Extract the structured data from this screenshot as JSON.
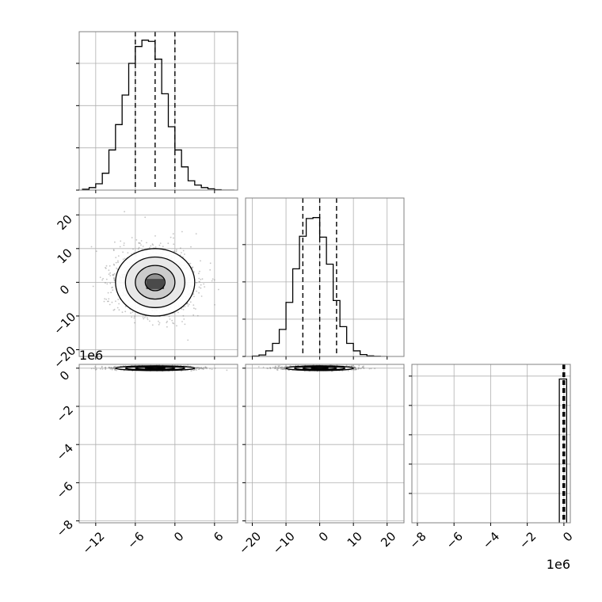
{
  "chart_data": {
    "type": "corner",
    "colors": {
      "line": "#000000",
      "grid": "#b0b0b0",
      "frame": "#808080",
      "scatter": "#7f7f7f"
    },
    "grid": true,
    "quantile_line_style": "dashed",
    "panels": [
      {
        "id": "hist-0",
        "type": "histogram",
        "row": 0,
        "col": 0,
        "xlim": [
          -14.5,
          9.5
        ],
        "bin_edges": [
          -14,
          -13,
          -12,
          -11,
          -10,
          -9,
          -8,
          -7,
          -6,
          -5,
          -4,
          -3,
          -2,
          -1,
          0,
          1,
          2,
          3,
          4,
          5,
          6,
          7,
          8,
          9
        ],
        "counts": [
          2,
          6,
          15,
          40,
          95,
          155,
          225,
          300,
          340,
          355,
          352,
          310,
          228,
          150,
          95,
          55,
          22,
          12,
          6,
          3,
          1,
          0,
          0
        ],
        "quantiles": [
          -6,
          -3,
          0
        ],
        "x_ticks": [
          -12,
          -6,
          0,
          6
        ],
        "x_tick_labels": [],
        "y_ticks": [
          0,
          100,
          200,
          300
        ],
        "y_tick_labels": [],
        "ylim": [
          0,
          375
        ]
      },
      {
        "id": "hist-1",
        "type": "histogram",
        "row": 1,
        "col": 1,
        "xlim": [
          -22,
          25
        ],
        "bin_edges": [
          -20,
          -18,
          -16,
          -14,
          -12,
          -10,
          -8,
          -6,
          -4,
          -2,
          0,
          2,
          4,
          6,
          8,
          10,
          12,
          14,
          16,
          18,
          20
        ],
        "counts": [
          2,
          8,
          30,
          70,
          145,
          290,
          470,
          645,
          740,
          745,
          640,
          495,
          300,
          160,
          70,
          30,
          10,
          3,
          1,
          0
        ],
        "quantiles": [
          -5,
          0,
          5
        ],
        "x_ticks": [
          -20,
          -10,
          0,
          10,
          20
        ],
        "x_tick_labels": [],
        "y_ticks": [
          0,
          200,
          400,
          600
        ],
        "y_tick_labels": [],
        "ylim": [
          0,
          850
        ]
      },
      {
        "id": "hist-2",
        "type": "histogram",
        "row": 2,
        "col": 2,
        "xlim": [
          -8.3,
          0.35
        ],
        "bin_edges": [
          -0.25,
          0.15
        ],
        "counts": [
          4900
        ],
        "quantiles": [
          -0.05,
          0.0,
          0.04
        ],
        "x_ticks": [
          -8,
          -6,
          -4,
          -2,
          0
        ],
        "x_tick_labels": [
          "−8",
          "−6",
          "−4",
          "−2",
          "0"
        ],
        "x_offset_label": "1e6",
        "y_ticks": [
          1000,
          2000,
          3000,
          4000,
          5000
        ],
        "y_tick_labels": [],
        "ylim": [
          0,
          5400
        ]
      },
      {
        "id": "scatter-1-0",
        "type": "density2d",
        "row": 1,
        "col": 0,
        "xlim": [
          -14.5,
          9.5
        ],
        "ylim": [
          -22,
          25
        ],
        "center": [
          -3,
          0
        ],
        "sigma": [
          3,
          5
        ],
        "contour_levels_sigma": [
          0.5,
          1.0,
          1.5,
          2.0
        ],
        "x_ticks": [
          -12,
          -6,
          0,
          6
        ],
        "x_tick_labels": [],
        "y_ticks": [
          -20,
          -10,
          0,
          10,
          20
        ],
        "y_tick_labels": [
          "−20",
          "−10",
          "0",
          "10",
          "20"
        ]
      },
      {
        "id": "scatter-2-0",
        "type": "density2d",
        "row": 2,
        "col": 0,
        "xlim": [
          -14.5,
          9.5
        ],
        "ylim": [
          -8.1,
          0.2
        ],
        "center": [
          -3,
          0
        ],
        "sigma": [
          3,
          0.04
        ],
        "contour_levels_sigma": [
          0.5,
          1.0,
          1.5,
          2.0
        ],
        "x_ticks": [
          -12,
          -6,
          0,
          6
        ],
        "x_tick_labels": [
          "−12",
          "−6",
          "0",
          "6"
        ],
        "y_ticks": [
          -8,
          -6,
          -4,
          -2,
          0
        ],
        "y_tick_labels": [
          "−8",
          "−6",
          "−4",
          "−2",
          "0"
        ],
        "y_offset_label": "1e6"
      },
      {
        "id": "scatter-2-1",
        "type": "density2d",
        "row": 2,
        "col": 1,
        "xlim": [
          -22,
          25
        ],
        "ylim": [
          -8.1,
          0.2
        ],
        "center": [
          0,
          0
        ],
        "sigma": [
          5,
          0.04
        ],
        "contour_levels_sigma": [
          0.5,
          1.0,
          1.5,
          2.0
        ],
        "x_ticks": [
          -20,
          -10,
          0,
          10,
          20
        ],
        "x_tick_labels": [
          "−20",
          "−10",
          "0",
          "10",
          "20"
        ],
        "y_ticks": [
          -8,
          -6,
          -4,
          -2,
          0
        ],
        "y_tick_labels": []
      }
    ]
  }
}
